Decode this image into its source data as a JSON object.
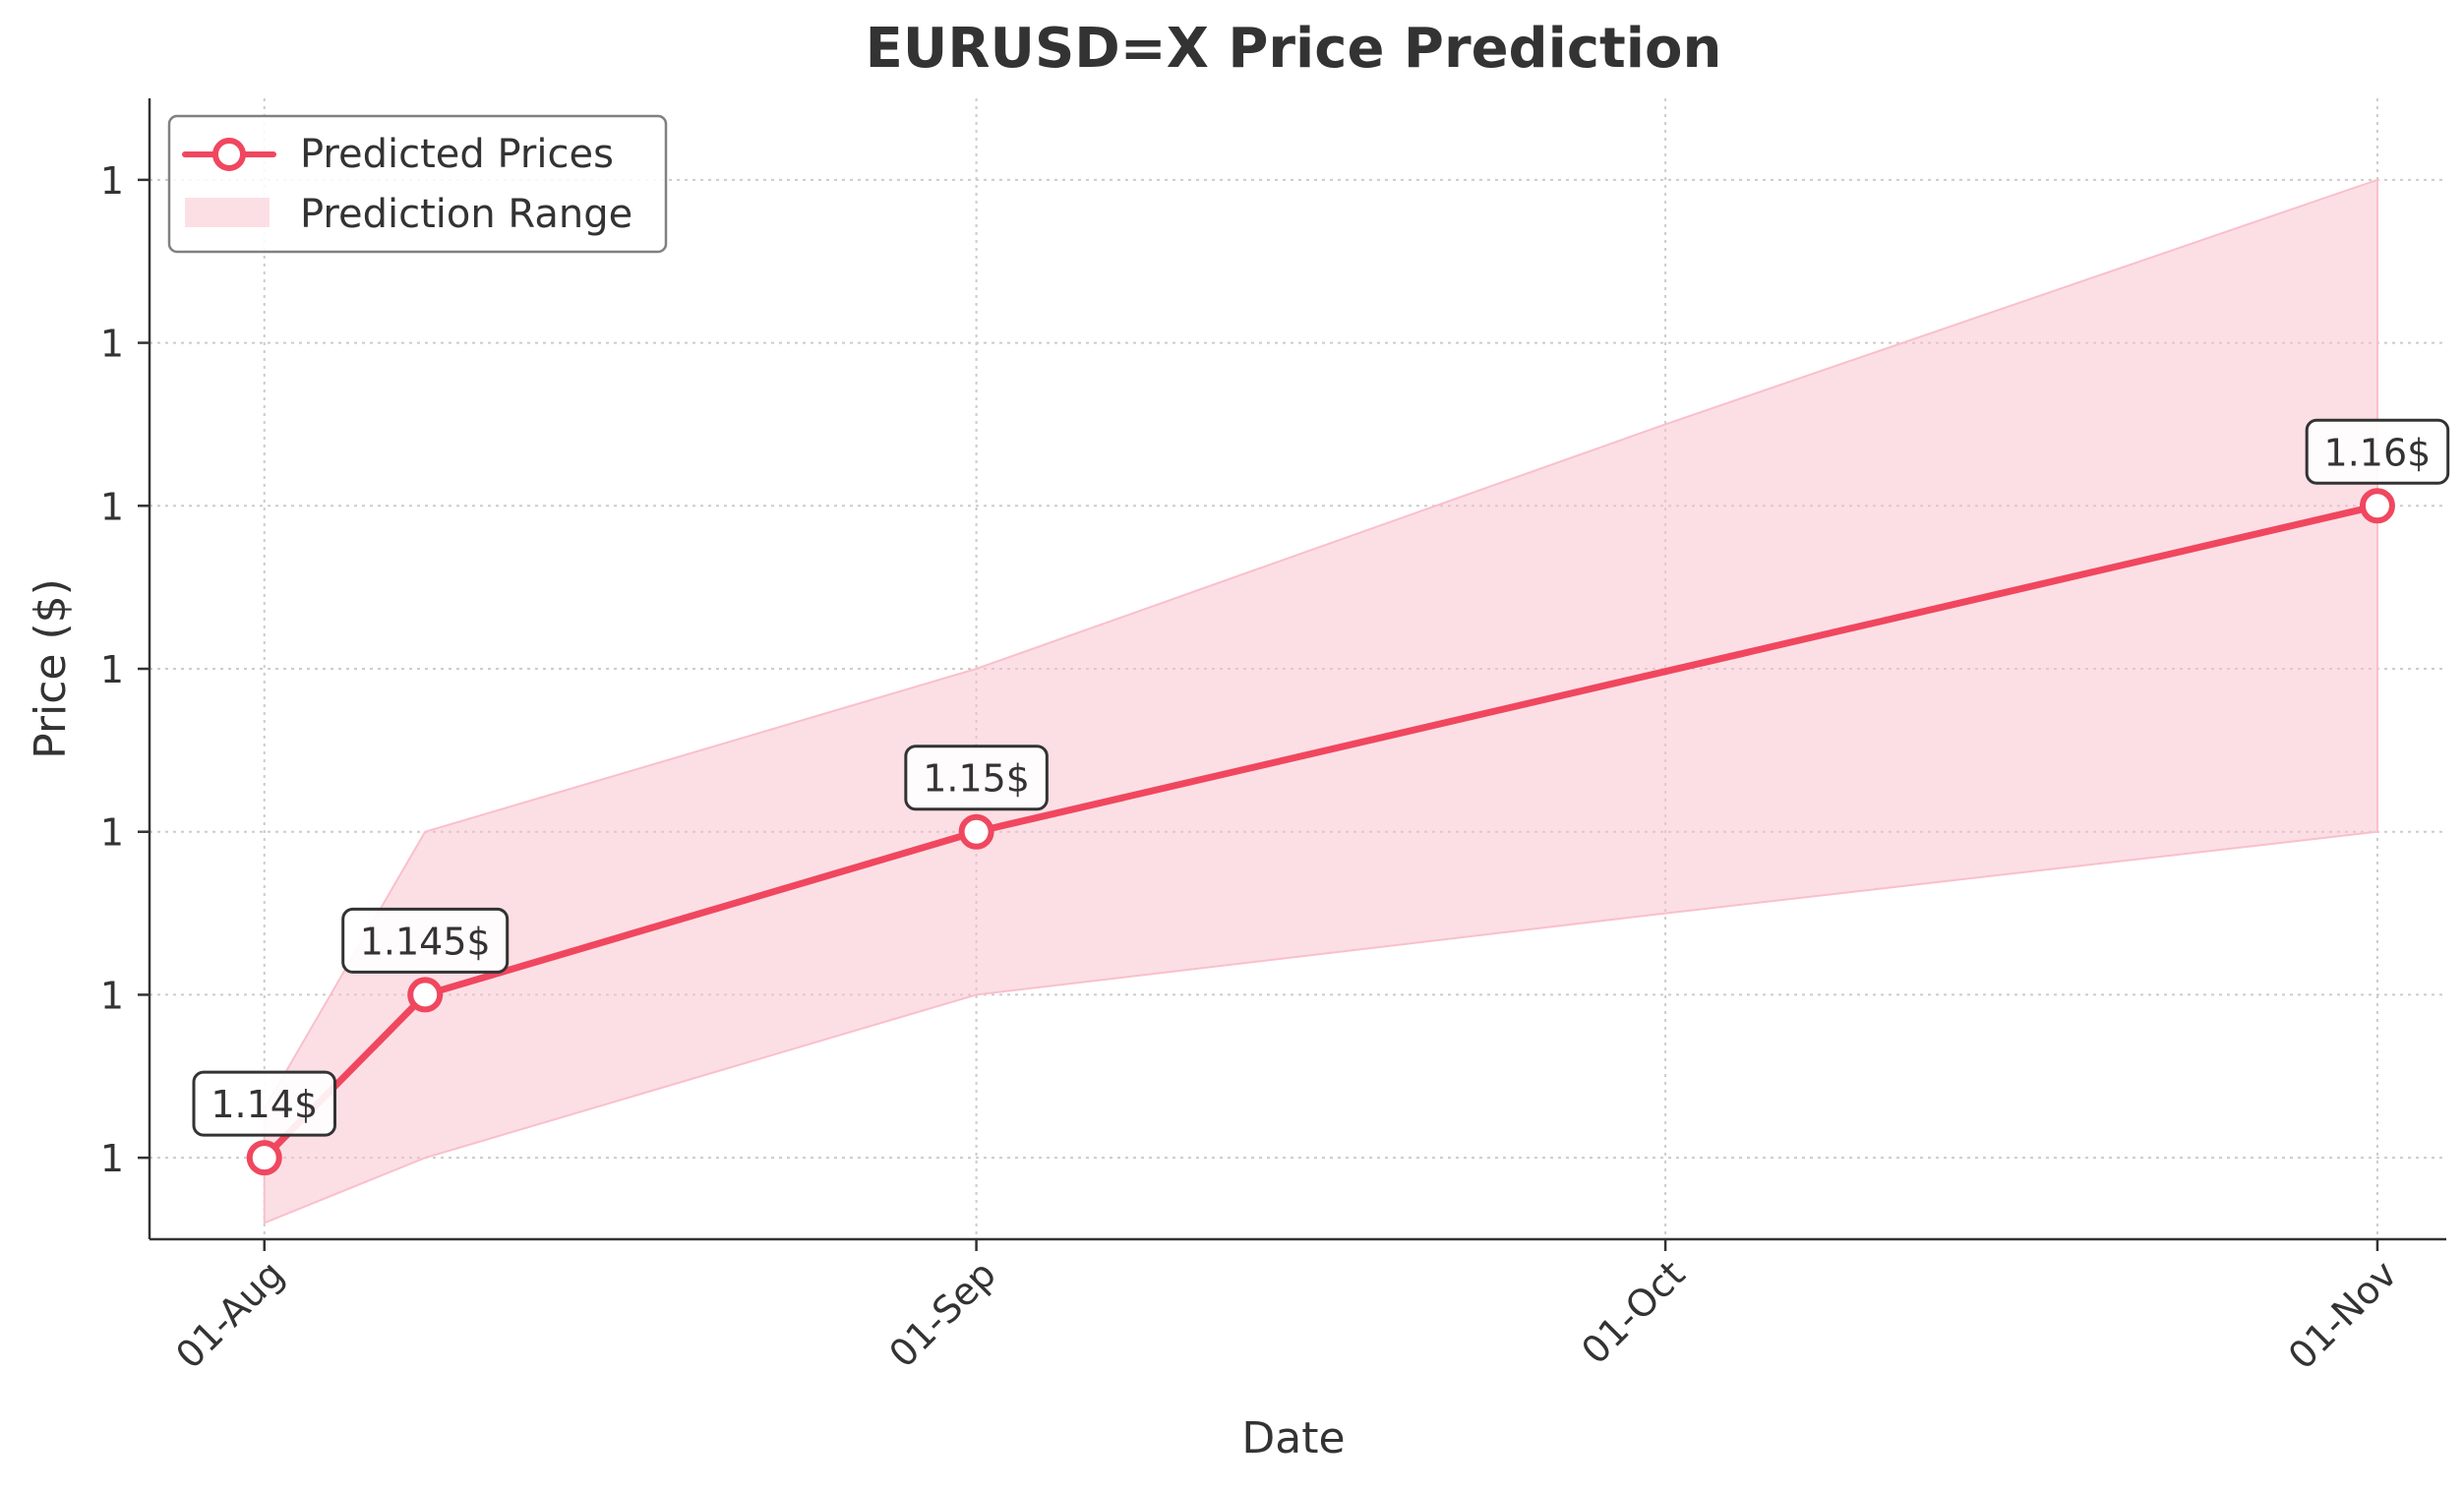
{
  "chart_data": {
    "type": "line",
    "title": "EURUSD=X Price Prediction",
    "xlabel": "Date",
    "ylabel": "Price ($)",
    "x_ticks": [
      "01-Aug",
      "01-Sep",
      "01-Oct",
      "01-Nov"
    ],
    "y_tick_labels": [
      "1",
      "1",
      "1",
      "1",
      "1",
      "1",
      "1"
    ],
    "xlim": [
      "2025-07-27",
      "2025-11-04"
    ],
    "ylim": [
      1.1375,
      1.1725
    ],
    "grid": true,
    "legend_position": "upper-left",
    "series": [
      {
        "name": "Predicted Prices",
        "color": "#f0475f",
        "x": [
          "2025-08-01",
          "2025-08-08",
          "2025-09-01",
          "2025-11-01"
        ],
        "y": [
          1.14,
          1.145,
          1.15,
          1.16
        ],
        "labels": [
          "1.14$",
          "1.145$",
          "1.15$",
          "1.16$"
        ]
      }
    ],
    "range": {
      "name": "Prediction Range",
      "color": "#f9c0cb",
      "x": [
        "2025-08-01",
        "2025-08-08",
        "2025-09-01",
        "2025-10-01",
        "2025-11-01"
      ],
      "lower": [
        1.138,
        1.14,
        1.145,
        1.1475,
        1.15
      ],
      "upper": [
        1.1415,
        1.15,
        1.155,
        1.1625,
        1.17
      ]
    },
    "y_tick_values": [
      1.14,
      1.145,
      1.15,
      1.155,
      1.16,
      1.165,
      1.17
    ]
  }
}
